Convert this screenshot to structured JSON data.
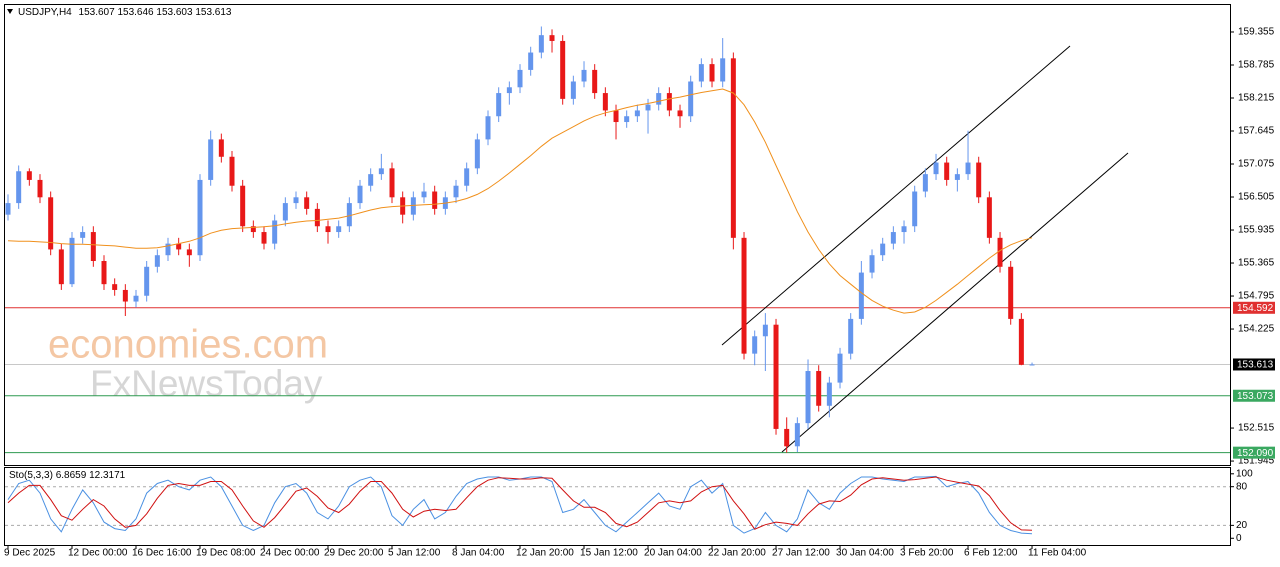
{
  "chart_data": {
    "type": "candlestick",
    "symbol": "USDJPY,H4",
    "up_color": "#6495ed",
    "down_color": "#e81818",
    "categories": [
      "9 Dec 2025",
      null,
      null,
      null,
      null,
      null,
      "12 Dec 00:00",
      null,
      null,
      null,
      null,
      null,
      "16 Dec 16:00",
      null,
      null,
      null,
      null,
      null,
      "19 Dec 08:00",
      null,
      null,
      null,
      null,
      null,
      "24 Dec 00:00",
      null,
      null,
      null,
      null,
      null,
      "29 Dec 20:00",
      null,
      null,
      null,
      null,
      null,
      "5 Jan 12:00",
      null,
      null,
      null,
      null,
      null,
      "8 Jan 04:00",
      null,
      null,
      null,
      null,
      null,
      "12 Jan 20:00",
      null,
      null,
      null,
      null,
      null,
      "15 Jan 12:00",
      null,
      null,
      null,
      null,
      null,
      "20 Jan 04:00",
      null,
      null,
      null,
      null,
      null,
      "22 Jan 20:00",
      null,
      null,
      null,
      null,
      null,
      "27 Jan 12:00",
      null,
      null,
      null,
      null,
      null,
      "30 Jan 04:00",
      null,
      null,
      null,
      null,
      null,
      "3 Feb 20:00",
      null,
      null,
      null,
      null,
      null,
      "6 Feb 12:00",
      null,
      null,
      null,
      null,
      null,
      "11 Feb 04:00"
    ],
    "ohlc": [
      [
        156.2,
        156.55,
        156.1,
        156.4
      ],
      [
        156.4,
        157.05,
        156.3,
        156.95
      ],
      [
        156.95,
        157.0,
        156.7,
        156.8
      ],
      [
        156.8,
        156.9,
        156.4,
        156.5
      ],
      [
        156.5,
        156.6,
        155.5,
        155.6
      ],
      [
        155.6,
        155.7,
        154.9,
        155.0
      ],
      [
        155.0,
        155.9,
        154.95,
        155.8
      ],
      [
        155.8,
        156.0,
        155.7,
        155.9
      ],
      [
        155.9,
        156.0,
        155.3,
        155.4
      ],
      [
        155.4,
        155.5,
        154.9,
        155.0
      ],
      [
        155.0,
        155.1,
        154.8,
        154.9
      ],
      [
        154.9,
        155.0,
        154.45,
        154.7
      ],
      [
        154.7,
        154.9,
        154.6,
        154.8
      ],
      [
        154.8,
        155.4,
        154.7,
        155.3
      ],
      [
        155.3,
        155.6,
        155.2,
        155.5
      ],
      [
        155.5,
        155.8,
        155.4,
        155.7
      ],
      [
        155.7,
        155.8,
        155.5,
        155.6
      ],
      [
        155.6,
        155.7,
        155.3,
        155.5
      ],
      [
        155.5,
        156.9,
        155.4,
        156.8
      ],
      [
        156.8,
        157.65,
        156.7,
        157.5
      ],
      [
        157.5,
        157.6,
        157.1,
        157.2
      ],
      [
        157.2,
        157.3,
        156.6,
        156.7
      ],
      [
        156.7,
        156.8,
        155.9,
        156.0
      ],
      [
        156.0,
        156.1,
        155.8,
        155.9
      ],
      [
        155.9,
        156.0,
        155.6,
        155.7
      ],
      [
        155.7,
        156.2,
        155.6,
        156.1
      ],
      [
        156.1,
        156.5,
        156.0,
        156.4
      ],
      [
        156.4,
        156.6,
        156.3,
        156.5
      ],
      [
        156.5,
        156.6,
        156.2,
        156.3
      ],
      [
        156.3,
        156.4,
        155.9,
        156.0
      ],
      [
        156.0,
        156.1,
        155.7,
        155.9
      ],
      [
        155.9,
        156.1,
        155.8,
        156.0
      ],
      [
        156.0,
        156.5,
        155.9,
        156.4
      ],
      [
        156.4,
        156.8,
        156.3,
        156.7
      ],
      [
        156.7,
        157.0,
        156.6,
        156.9
      ],
      [
        156.9,
        157.25,
        156.8,
        157.0
      ],
      [
        157.0,
        157.1,
        156.4,
        156.5
      ],
      [
        156.5,
        156.6,
        156.05,
        156.2
      ],
      [
        156.2,
        156.6,
        156.1,
        156.5
      ],
      [
        156.5,
        156.75,
        156.4,
        156.6
      ],
      [
        156.6,
        156.7,
        156.2,
        156.3
      ],
      [
        156.3,
        156.6,
        156.2,
        156.5
      ],
      [
        156.5,
        156.8,
        156.4,
        156.7
      ],
      [
        156.7,
        157.1,
        156.6,
        157.0
      ],
      [
        157.0,
        157.6,
        156.9,
        157.5
      ],
      [
        157.5,
        158.0,
        157.4,
        157.9
      ],
      [
        157.9,
        158.4,
        157.8,
        158.3
      ],
      [
        158.3,
        158.5,
        158.1,
        158.4
      ],
      [
        158.4,
        158.8,
        158.3,
        158.7
      ],
      [
        158.7,
        159.1,
        158.6,
        159.0
      ],
      [
        159.0,
        159.45,
        158.9,
        159.3
      ],
      [
        159.3,
        159.4,
        159.0,
        159.2
      ],
      [
        159.2,
        159.3,
        158.1,
        158.2
      ],
      [
        158.2,
        158.6,
        158.1,
        158.5
      ],
      [
        158.5,
        158.85,
        158.4,
        158.7
      ],
      [
        158.7,
        158.8,
        158.2,
        158.3
      ],
      [
        158.3,
        158.4,
        157.9,
        158.0
      ],
      [
        158.0,
        158.1,
        157.5,
        157.8
      ],
      [
        157.8,
        158.0,
        157.7,
        157.9
      ],
      [
        157.9,
        158.1,
        157.8,
        158.0
      ],
      [
        158.0,
        158.2,
        157.6,
        158.1
      ],
      [
        158.1,
        158.4,
        158.0,
        158.3
      ],
      [
        158.3,
        158.4,
        157.9,
        158.0
      ],
      [
        158.0,
        158.1,
        157.7,
        157.9
      ],
      [
        157.9,
        158.6,
        157.8,
        158.5
      ],
      [
        158.5,
        158.9,
        158.4,
        158.8
      ],
      [
        158.8,
        158.9,
        158.4,
        158.5
      ],
      [
        158.5,
        159.25,
        158.4,
        158.9
      ],
      [
        158.9,
        159.0,
        155.6,
        155.8
      ],
      [
        155.8,
        155.9,
        153.7,
        153.8
      ],
      [
        153.8,
        154.2,
        153.6,
        154.1
      ],
      [
        154.1,
        154.5,
        153.5,
        154.3
      ],
      [
        154.3,
        154.4,
        152.4,
        152.5
      ],
      [
        152.5,
        152.7,
        152.09,
        152.2
      ],
      [
        152.2,
        152.7,
        152.1,
        152.6
      ],
      [
        152.6,
        153.7,
        152.5,
        153.5
      ],
      [
        153.5,
        153.6,
        152.8,
        152.9
      ],
      [
        152.9,
        153.4,
        152.7,
        153.3
      ],
      [
        153.3,
        153.9,
        153.2,
        153.8
      ],
      [
        153.8,
        154.5,
        153.7,
        154.4
      ],
      [
        154.4,
        155.4,
        154.3,
        155.2
      ],
      [
        155.2,
        155.6,
        155.1,
        155.5
      ],
      [
        155.5,
        155.8,
        155.4,
        155.7
      ],
      [
        155.7,
        156.0,
        155.6,
        155.9
      ],
      [
        155.9,
        156.1,
        155.7,
        156.0
      ],
      [
        156.0,
        156.7,
        155.9,
        156.6
      ],
      [
        156.6,
        157.0,
        156.5,
        156.9
      ],
      [
        156.9,
        157.25,
        156.8,
        157.1
      ],
      [
        157.1,
        157.2,
        156.7,
        156.8
      ],
      [
        156.8,
        157.0,
        156.6,
        156.9
      ],
      [
        156.9,
        157.65,
        156.8,
        157.1
      ],
      [
        157.1,
        157.2,
        156.4,
        156.5
      ],
      [
        156.5,
        156.6,
        155.7,
        155.8
      ],
      [
        155.8,
        155.9,
        155.2,
        155.3
      ],
      [
        155.3,
        155.4,
        154.3,
        154.4
      ],
      [
        154.4,
        154.5,
        153.6,
        153.607
      ],
      [
        153.607,
        153.646,
        153.603,
        153.613
      ]
    ],
    "ma": {
      "color": "#f0901c",
      "values": [
        155.75,
        155.74,
        155.74,
        155.73,
        155.72,
        155.7,
        155.69,
        155.69,
        155.68,
        155.67,
        155.66,
        155.64,
        155.62,
        155.62,
        155.63,
        155.66,
        155.7,
        155.74,
        155.8,
        155.88,
        155.93,
        155.96,
        155.97,
        155.98,
        155.99,
        156.01,
        156.04,
        156.07,
        156.09,
        156.1,
        156.12,
        156.14,
        156.18,
        156.23,
        156.28,
        156.32,
        156.34,
        156.35,
        156.36,
        156.37,
        156.38,
        156.4,
        156.43,
        156.48,
        156.55,
        156.65,
        156.78,
        156.92,
        157.07,
        157.22,
        157.38,
        157.52,
        157.62,
        157.72,
        157.82,
        157.9,
        157.96,
        158.0,
        158.05,
        158.09,
        158.12,
        158.16,
        158.2,
        158.23,
        158.27,
        158.31,
        158.34,
        158.37,
        158.3,
        158.1,
        157.8,
        157.45,
        157.05,
        156.65,
        156.25,
        155.9,
        155.6,
        155.35,
        155.15,
        155.0,
        154.85,
        154.72,
        154.62,
        154.55,
        154.5,
        154.52,
        154.6,
        154.72,
        154.86,
        155.0,
        155.15,
        155.3,
        155.45,
        155.58,
        155.68,
        155.75,
        155.8
      ]
    },
    "ylim": [
      151.877,
      159.821
    ],
    "yticks": [
      159.355,
      158.785,
      158.215,
      157.645,
      157.075,
      156.505,
      155.935,
      155.365,
      154.795,
      154.225,
      152.515,
      151.945
    ],
    "levels": [
      {
        "value": 154.592,
        "label": "154.592",
        "color": "#e03030",
        "label_color": "#e03030"
      },
      {
        "value": 153.613,
        "label": "153.613",
        "color": "#c8c8c8",
        "label_color": "#000000"
      },
      {
        "value": 153.073,
        "label": "153.073",
        "color": "#2e9a50",
        "label_color": "#3aa860"
      },
      {
        "value": 152.09,
        "label": "152.090",
        "color": "#2e9a50",
        "label_color": "#3aa860"
      }
    ],
    "watermarks": [
      "economies.com",
      "FxNewsToday"
    ],
    "oscillator": {
      "title": "Sto(5,3,3)",
      "ylim": [
        -12,
        109
      ],
      "yticks": [
        100,
        80,
        20,
        0
      ],
      "dash_levels": [
        80,
        20
      ],
      "main": {
        "color": "#4a90e2",
        "values": [
          60,
          85,
          90,
          70,
          30,
          10,
          45,
          75,
          55,
          25,
          15,
          12,
          30,
          70,
          85,
          90,
          80,
          75,
          90,
          95,
          80,
          50,
          20,
          12,
          20,
          55,
          80,
          85,
          70,
          40,
          30,
          50,
          80,
          90,
          95,
          80,
          35,
          20,
          45,
          60,
          30,
          40,
          65,
          85,
          92,
          95,
          95,
          90,
          92,
          95,
          95,
          88,
          40,
          45,
          60,
          40,
          20,
          10,
          25,
          40,
          55,
          70,
          50,
          45,
          80,
          90,
          70,
          85,
          20,
          8,
          15,
          40,
          20,
          10,
          30,
          75,
          55,
          45,
          70,
          85,
          95,
          95,
          92,
          90,
          88,
          95,
          95,
          96,
          80,
          85,
          88,
          70,
          40,
          20,
          12,
          8,
          6.8659
        ]
      },
      "signal": {
        "color": "#d01010",
        "values": [
          55,
          70,
          82,
          82,
          60,
          35,
          28,
          45,
          60,
          50,
          30,
          17,
          20,
          38,
          62,
          82,
          85,
          82,
          82,
          88,
          88,
          75,
          50,
          27,
          17,
          32,
          52,
          73,
          78,
          65,
          47,
          40,
          53,
          73,
          88,
          88,
          70,
          45,
          33,
          42,
          45,
          43,
          45,
          63,
          80,
          90,
          94,
          93,
          92,
          92,
          94,
          93,
          75,
          58,
          48,
          48,
          40,
          23,
          18,
          25,
          40,
          55,
          58,
          55,
          58,
          72,
          80,
          82,
          58,
          38,
          14,
          21,
          25,
          23,
          20,
          38,
          53,
          58,
          57,
          67,
          83,
          92,
          94,
          92,
          90,
          91,
          93,
          95,
          90,
          87,
          84,
          81,
          66,
          43,
          24,
          13,
          12.3171
        ]
      }
    }
  }
}
